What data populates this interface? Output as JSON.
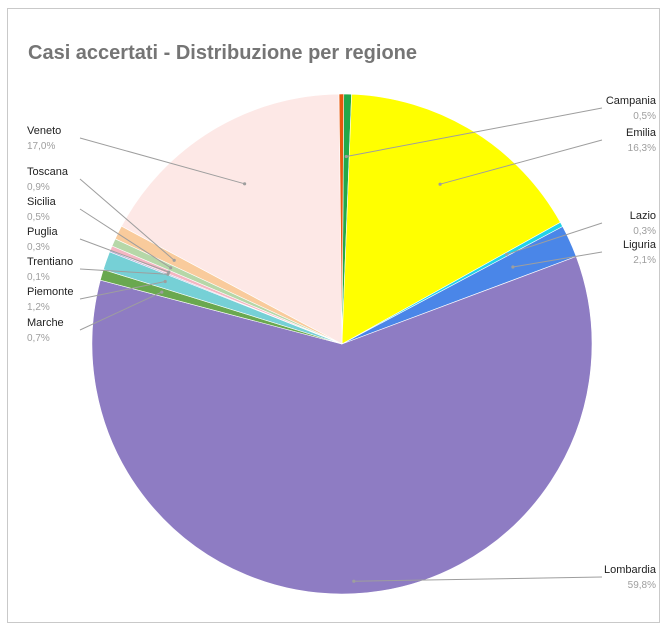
{
  "chart_data": {
    "type": "pie",
    "title": "Casi accertati - Distribuzione per regione",
    "slices": [
      {
        "label": "Campania",
        "value": 0.5,
        "display": "0,5%",
        "color": "#22a84a"
      },
      {
        "label": "Emilia",
        "value": 16.3,
        "display": "16,3%",
        "color": "#ffff00"
      },
      {
        "label": "Lazio",
        "value": 0.3,
        "display": "0,3%",
        "color": "#22d3e8"
      },
      {
        "label": "Liguria",
        "value": 2.1,
        "display": "2,1%",
        "color": "#4a86e8"
      },
      {
        "label": "Lombardia",
        "value": 59.8,
        "display": "59,8%",
        "color": "#8e7cc3"
      },
      {
        "label": "Marche",
        "value": 0.7,
        "display": "0,7%",
        "color": "#6aa84f"
      },
      {
        "label": "Piemonte",
        "value": 1.2,
        "display": "1,2%",
        "color": "#76d0d6"
      },
      {
        "label": "Trentiano",
        "value": 0.1,
        "display": "0,1%",
        "color": "#b4a7d6"
      },
      {
        "label": "Puglia",
        "value": 0.3,
        "display": "0,3%",
        "color": "#f4b6c2"
      },
      {
        "label": "Sicilia",
        "value": 0.5,
        "display": "0,5%",
        "color": "#b6d7a8"
      },
      {
        "label": "Toscana",
        "value": 0.9,
        "display": "0,9%",
        "color": "#f9cb9c"
      },
      {
        "label": "Veneto",
        "value": 17.0,
        "display": "17,0%",
        "color": "#fde8e6"
      },
      {
        "label": "",
        "value": 0.3,
        "display": "",
        "color": "#e8590c"
      }
    ],
    "legend": "none"
  }
}
